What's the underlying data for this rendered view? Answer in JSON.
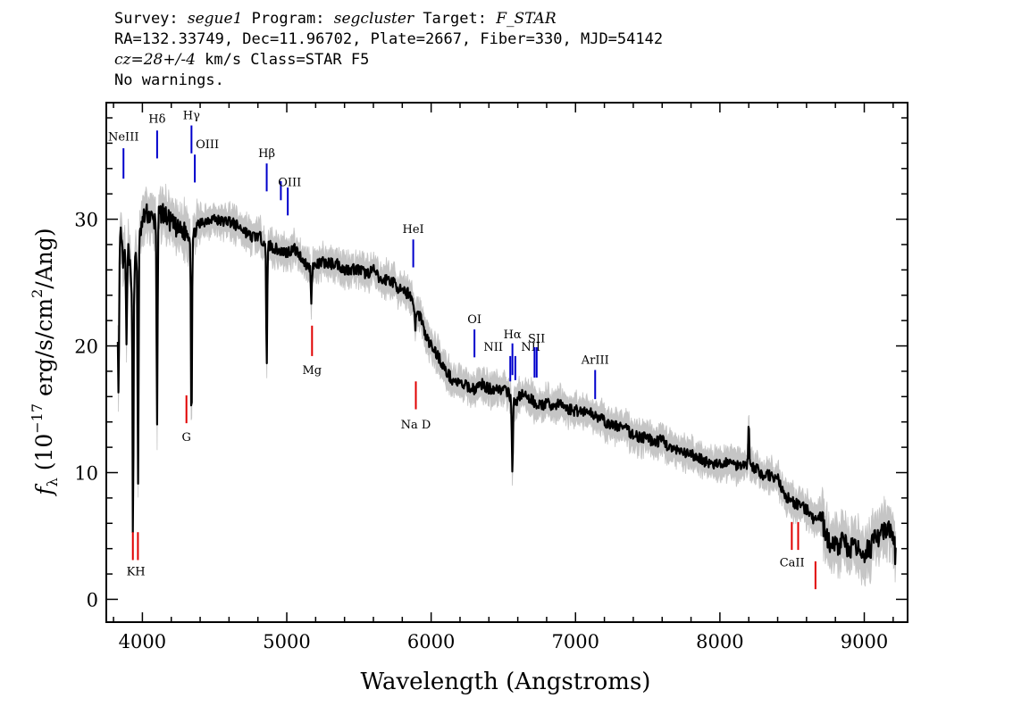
{
  "header": {
    "line1": {
      "survey_label": "Survey: ",
      "survey": "segue1",
      "program_label": " Program: ",
      "program": "segcluster",
      "target_label": " Target: ",
      "target": "F_STAR"
    },
    "line2": "RA=132.33749, Dec=11.96702, Plate=2667, Fiber=330, MJD=54142",
    "line3": {
      "cz": "cz=28+/-4",
      "rest": " km/s Class=STAR F5"
    },
    "line4": "No warnings."
  },
  "chart_data": {
    "type": "line",
    "xlabel": "Wavelength (Angstroms)",
    "ylabel": "f_λ (10^-17 erg/s/cm^2/Ang)",
    "ylabel_parts": {
      "f": "f",
      "sub": "λ",
      "pre": " (10",
      "exp": "−17",
      "mid": " erg/s/cm",
      "exp2": "2",
      "post": "/Ang)"
    },
    "xlim": [
      3750,
      9300
    ],
    "ylim": [
      -1.8,
      39.2
    ],
    "x_ticks": [
      4000,
      5000,
      6000,
      7000,
      8000,
      9000
    ],
    "y_ticks": [
      0,
      10,
      20,
      30
    ],
    "colors": {
      "flux": "#000000",
      "error": "#bfbfbf",
      "emission": "#0000cc",
      "absorption": "#e00000"
    },
    "series": [
      {
        "x": [
          3830,
          3850,
          3870,
          3890,
          3920,
          3950,
          3970,
          3990,
          4020,
          4050,
          4080,
          4110,
          4140,
          4170,
          4200,
          4250,
          4300,
          4340,
          4380,
          4420,
          4480,
          4550,
          4600,
          4650,
          4700,
          4750,
          4800,
          4860,
          4900,
          4950,
          5000,
          5050,
          5100,
          5150,
          5200,
          5250,
          5300,
          5350,
          5400,
          5450,
          5500,
          5550,
          5600,
          5650,
          5700,
          5750,
          5800,
          5850,
          5880,
          5900,
          5930,
          5960,
          6000,
          6050,
          6100,
          6150,
          6200,
          6250,
          6300,
          6350,
          6400,
          6450,
          6500,
          6540,
          6580,
          6620,
          6700,
          6750,
          6800,
          6850,
          6900,
          6950,
          7000,
          7050,
          7100,
          7150,
          7200,
          7250,
          7300,
          7350,
          7400,
          7450,
          7500,
          7550,
          7600,
          7650,
          7700,
          7750,
          7800,
          7850,
          7900,
          7950,
          8000,
          8050,
          8100,
          8150,
          8200,
          8250,
          8300,
          8350,
          8400,
          8450,
          8500,
          8550,
          8600,
          8650,
          8700,
          8750,
          8800,
          8850,
          8900,
          8950,
          9000,
          9050,
          9100,
          9150,
          9200,
          9220
        ],
        "values": [
          24.8,
          28.8,
          26.2,
          28.5,
          25.5,
          26.5,
          27.5,
          29.2,
          30.5,
          30.3,
          29.8,
          30.2,
          30.6,
          30.1,
          29.7,
          29.1,
          29.0,
          28.4,
          29.4,
          29.8,
          30.1,
          29.8,
          29.9,
          29.5,
          29.2,
          28.6,
          28.7,
          28.1,
          27.8,
          27.5,
          27.4,
          27.7,
          27.0,
          26.2,
          26.3,
          26.6,
          26.5,
          26.5,
          26.0,
          26.1,
          26.0,
          25.7,
          26.0,
          25.1,
          25.3,
          24.9,
          24.2,
          24.2,
          23.3,
          22.6,
          22.3,
          20.8,
          20.0,
          19.2,
          18.0,
          17.3,
          17.0,
          16.8,
          16.6,
          17.0,
          16.6,
          16.7,
          16.5,
          16.2,
          15.4,
          16.2,
          15.7,
          15.3,
          15.4,
          15.3,
          15.4,
          15.0,
          14.9,
          14.9,
          14.7,
          14.5,
          14.0,
          13.7,
          13.7,
          13.4,
          13.0,
          12.8,
          12.7,
          12.4,
          12.6,
          12.0,
          11.7,
          11.5,
          11.4,
          11.2,
          10.9,
          10.6,
          10.6,
          10.9,
          10.6,
          10.7,
          10.7,
          10.3,
          9.8,
          9.8,
          9.5,
          8.2,
          7.7,
          7.4,
          7.1,
          6.2,
          6.6,
          4.5,
          4.2,
          4.5,
          4.1,
          3.8,
          3.8,
          4.2,
          5.0,
          5.4,
          5.1,
          3.0
        ]
      }
    ],
    "dips": [
      {
        "x": 3835,
        "depth": 10
      },
      {
        "x": 3890,
        "depth": 9
      },
      {
        "x": 3935,
        "depth": 21
      },
      {
        "x": 3970,
        "depth": 18
      },
      {
        "x": 4102,
        "depth": 16
      },
      {
        "x": 4340,
        "depth": 15
      },
      {
        "x": 4861,
        "depth": 10
      },
      {
        "x": 5170,
        "depth": 2.5
      },
      {
        "x": 5890,
        "depth": 1.5
      },
      {
        "x": 6563,
        "depth": 6
      }
    ],
    "spikes": [
      {
        "x": 8200,
        "height": 3
      }
    ],
    "lines": [
      {
        "label": "NeIII",
        "x": 3869,
        "kind": "emission",
        "y1": 33.2,
        "y2": 35.6,
        "lx": 3869,
        "ly": 36.2
      },
      {
        "label": "Hδ",
        "x": 4102,
        "kind": "emission",
        "y1": 34.8,
        "y2": 37.0,
        "lx": 4102,
        "ly": 37.6
      },
      {
        "label": "Hγ",
        "x": 4340,
        "kind": "emission",
        "y1": 35.2,
        "y2": 37.4,
        "lx": 4340,
        "ly": 37.9
      },
      {
        "label": "OIII",
        "x": 4363,
        "kind": "emission",
        "y1": 32.9,
        "y2": 35.1,
        "lx": 4450,
        "ly": 35.6
      },
      {
        "label": "Hβ",
        "x": 4861,
        "kind": "emission",
        "y1": 32.2,
        "y2": 34.4,
        "lx": 4861,
        "ly": 34.9
      },
      {
        "label": "OIII",
        "x": 4959,
        "kind": "emission",
        "y1": 31.5,
        "y2": 33.0,
        "lx": 5020,
        "ly": 32.6
      },
      {
        "label": "OIII",
        "x": 5007,
        "kind": "emission",
        "y1": 30.3,
        "y2": 32.5,
        "lx": null,
        "ly": null
      },
      {
        "label": "HeI",
        "x": 5876,
        "kind": "emission",
        "y1": 26.2,
        "y2": 28.4,
        "lx": 5876,
        "ly": 28.9
      },
      {
        "label": "OI",
        "x": 6300,
        "kind": "emission",
        "y1": 19.1,
        "y2": 21.3,
        "lx": 6300,
        "ly": 21.8
      },
      {
        "label": "NII",
        "x": 6548,
        "kind": "emission",
        "y1": 17.2,
        "y2": 19.2,
        "lx": 6430,
        "ly": 19.6
      },
      {
        "label": "Hα",
        "x": 6563,
        "kind": "emission",
        "y1": 17.7,
        "y2": 20.2,
        "lx": 6563,
        "ly": 20.6
      },
      {
        "label": "NII",
        "x": 6583,
        "kind": "emission",
        "y1": 17.3,
        "y2": 19.2,
        "lx": 6690,
        "ly": 19.6
      },
      {
        "label": "SII",
        "x": 6716,
        "kind": "emission",
        "y1": 17.5,
        "y2": 19.9,
        "lx": 6730,
        "ly": 20.3
      },
      {
        "label": "",
        "x": 6731,
        "kind": "emission",
        "y1": 17.5,
        "y2": 19.9,
        "lx": null,
        "ly": null
      },
      {
        "label": "ArIII",
        "x": 7136,
        "kind": "emission",
        "y1": 15.8,
        "y2": 18.1,
        "lx": 7136,
        "ly": 18.6
      },
      {
        "label": "",
        "x": 3934,
        "kind": "absorption",
        "y1": 3.1,
        "y2": 5.3,
        "lx": null,
        "ly": null
      },
      {
        "label": "KH",
        "x": 3969,
        "kind": "absorption",
        "y1": 3.1,
        "y2": 5.3,
        "lx": 3955,
        "ly": 1.9
      },
      {
        "label": "G",
        "x": 4305,
        "kind": "absorption",
        "y1": 13.9,
        "y2": 16.1,
        "lx": 4305,
        "ly": 12.5
      },
      {
        "label": "Mg",
        "x": 5175,
        "kind": "absorption",
        "y1": 19.2,
        "y2": 21.6,
        "lx": 5175,
        "ly": 17.8
      },
      {
        "label": "Na D",
        "x": 5894,
        "kind": "absorption",
        "y1": 15.0,
        "y2": 17.2,
        "lx": 5894,
        "ly": 13.5
      },
      {
        "label": "",
        "x": 8498,
        "kind": "absorption",
        "y1": 3.9,
        "y2": 6.1,
        "lx": null,
        "ly": null
      },
      {
        "label": "CaII",
        "x": 8542,
        "kind": "absorption",
        "y1": 3.9,
        "y2": 6.1,
        "lx": 8500,
        "ly": 2.6
      },
      {
        "label": "",
        "x": 8662,
        "kind": "absorption",
        "y1": 0.8,
        "y2": 3.0,
        "lx": null,
        "ly": null
      }
    ]
  }
}
